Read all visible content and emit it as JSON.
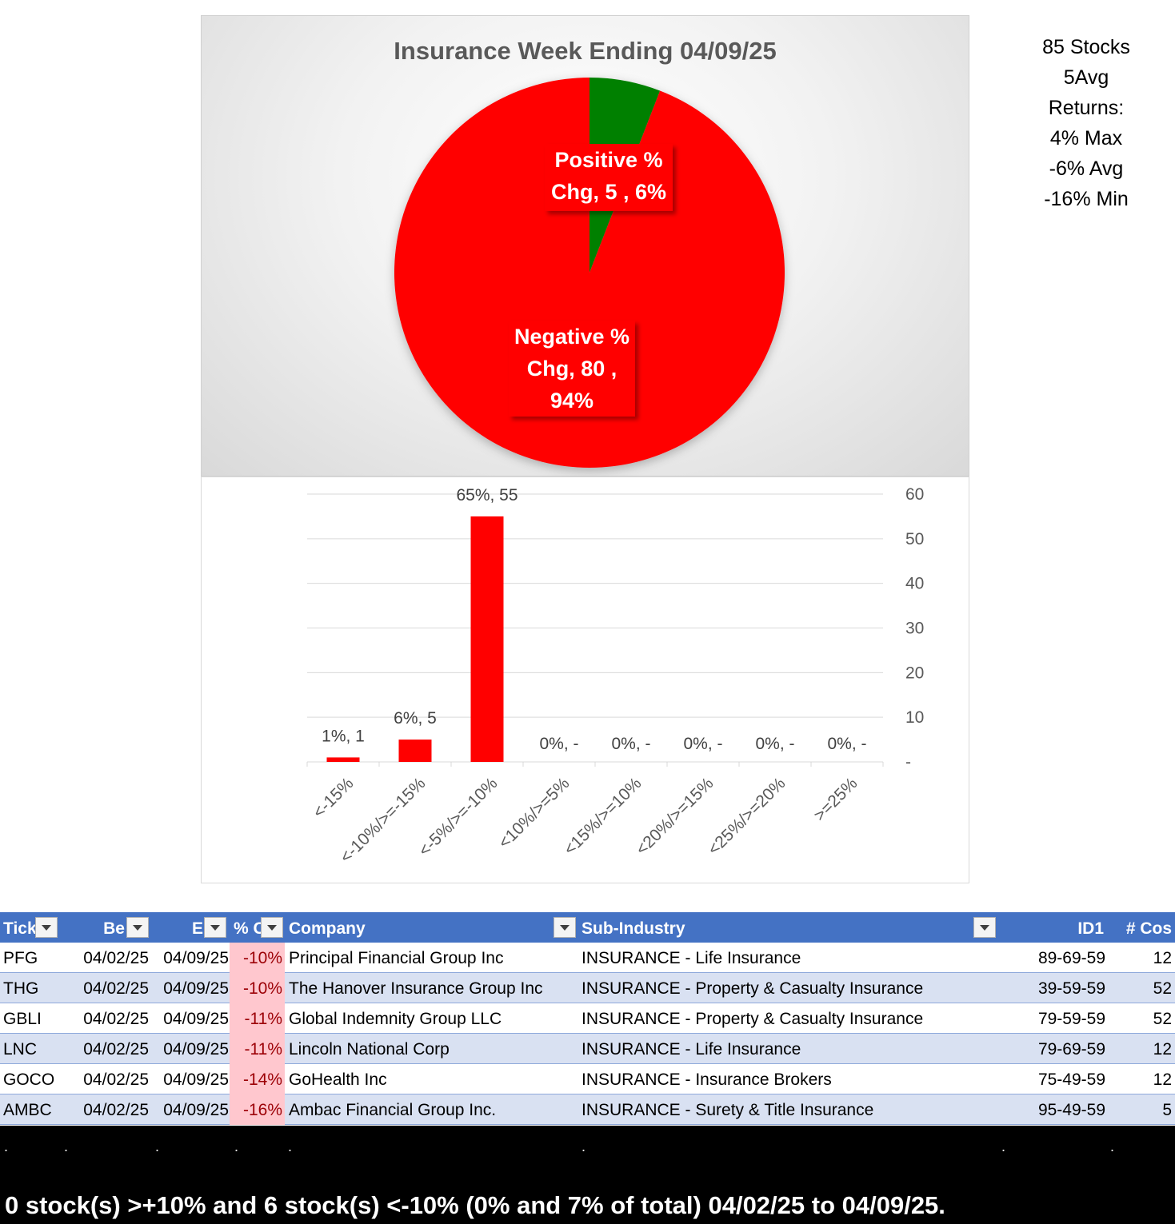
{
  "chart_data": [
    {
      "type": "pie",
      "title": "Insurance Week Ending 04/09/25",
      "slices": [
        {
          "name": "Positive % Chg",
          "value": 5,
          "percent": "6%",
          "color": "#008000"
        },
        {
          "name": "Negative % Chg",
          "value": 80,
          "percent": "94%",
          "color": "#ff0000"
        }
      ],
      "labels": {
        "positive": {
          "line1": "Positive %",
          "line2": "Chg,  5 , 6%"
        },
        "negative": {
          "line1": "Negative %",
          "line2": "Chg,  80 ,",
          "line3": "94%"
        }
      }
    },
    {
      "type": "bar",
      "categories": [
        "<-15%",
        "<-10%/>=-15%",
        "<-5%/>=-10%",
        "<10%/>=5%",
        "<15%/>=10%",
        "<20%/>=15%",
        "<25%/>=20%",
        ">=25%"
      ],
      "values": [
        1,
        5,
        55,
        0,
        0,
        0,
        0,
        0
      ],
      "data_labels": [
        "1%,  1",
        "6%,  5",
        "65%,  55",
        "0%,  -",
        "0%,  -",
        "0%,  -",
        "0%,  -",
        "0%,  -"
      ],
      "ylim": [
        0,
        60
      ],
      "yticks": [
        "-",
        "10",
        "20",
        "30",
        "40",
        "50",
        "60"
      ],
      "ytick_values": [
        0,
        10,
        20,
        30,
        40,
        50,
        60
      ],
      "y_axis_side": "right",
      "grid": true,
      "bar_color": "#ff0000"
    }
  ],
  "stats": [
    "85 Stocks",
    "5Avg",
    "Returns:",
    "4% Max",
    "-6% Avg",
    "-16% Min"
  ],
  "table": {
    "headers": [
      "Tick",
      "Be",
      "E",
      "% C",
      "Company",
      "Sub-Industry",
      "ID1",
      "# Cos"
    ],
    "rows": [
      [
        "PFG",
        "04/02/25",
        "04/09/25",
        "-10%",
        "Principal Financial Group Inc",
        "INSURANCE - Life Insurance",
        "89-69-59",
        "12"
      ],
      [
        "THG",
        "04/02/25",
        "04/09/25",
        "-10%",
        "The Hanover Insurance Group Inc",
        "INSURANCE - Property & Casualty Insurance",
        "39-59-59",
        "52"
      ],
      [
        "GBLI",
        "04/02/25",
        "04/09/25",
        "-11%",
        "Global Indemnity Group LLC",
        "INSURANCE - Property & Casualty Insurance",
        "79-59-59",
        "52"
      ],
      [
        "LNC",
        "04/02/25",
        "04/09/25",
        "-11%",
        "Lincoln National Corp",
        "INSURANCE - Life Insurance",
        "79-69-59",
        "12"
      ],
      [
        "GOCO",
        "04/02/25",
        "04/09/25",
        "-14%",
        "GoHealth Inc",
        "INSURANCE - Insurance Brokers",
        "75-49-59",
        "12"
      ],
      [
        "AMBC",
        "04/02/25",
        "04/09/25",
        "-16%",
        "Ambac Financial Group Inc.",
        "INSURANCE - Surety & Title Insurance",
        "95-49-59",
        "5"
      ]
    ],
    "dots": [
      ".",
      ".",
      ".",
      ".",
      ".",
      ".",
      ".",
      "."
    ]
  },
  "footer": "0 stock(s) >+10% and 6 stock(s) <-10% (0% and 7% of total) 04/02/25 to 04/09/25."
}
